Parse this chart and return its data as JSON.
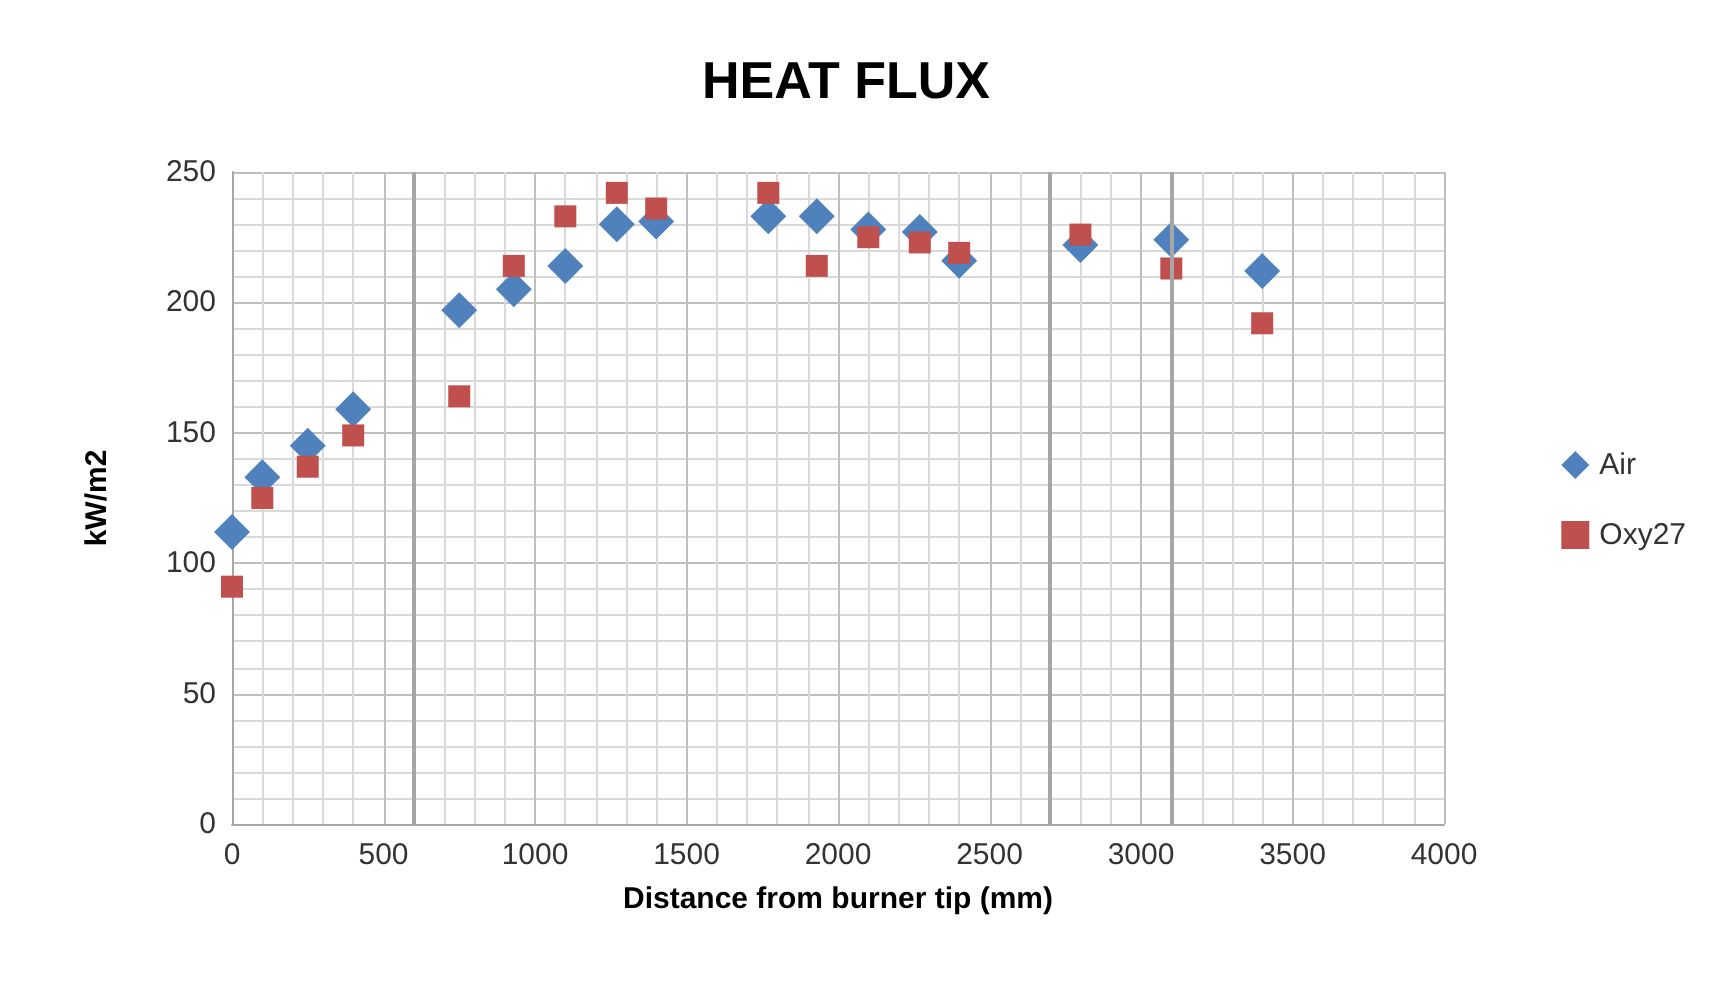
{
  "chart_data": {
    "type": "scatter",
    "title": "HEAT FLUX",
    "xlabel": "Distance from burner tip (mm)",
    "ylabel": "kW/m2",
    "xlim": [
      0,
      4000
    ],
    "xticks": [
      0,
      500,
      1000,
      1500,
      2000,
      2500,
      3000,
      3500,
      4000
    ],
    "ylim": [
      0,
      250
    ],
    "yticks": [
      0,
      50,
      100,
      150,
      200,
      250
    ],
    "grid": true,
    "legend": "right",
    "ref_lines": [
      {
        "axis": "x",
        "value": 600,
        "color": "#a6a6a6"
      },
      {
        "axis": "x",
        "value": 2700,
        "color": "#a6a6a6"
      },
      {
        "axis": "x",
        "value": 3100,
        "color": "#a6a6a6"
      }
    ],
    "series": [
      {
        "name": "Air",
        "color": "#4f81bd",
        "marker": "diamond",
        "x": [
          0,
          100,
          250,
          400,
          750,
          930,
          1100,
          1270,
          1400,
          1770,
          1930,
          2100,
          2270,
          2400,
          2800,
          3100,
          3400
        ],
        "values": [
          112,
          133,
          145,
          159,
          197,
          205,
          214,
          230,
          231,
          233,
          233,
          228,
          227,
          216,
          222,
          224,
          212
        ]
      },
      {
        "name": "Oxy27",
        "color": "#c0504d",
        "marker": "square",
        "x": [
          0,
          100,
          250,
          400,
          750,
          930,
          1100,
          1270,
          1400,
          1770,
          1930,
          2100,
          2270,
          2400,
          2800,
          3100,
          3400
        ],
        "values": [
          91,
          125,
          137,
          149,
          164,
          214,
          233,
          242,
          236,
          242,
          214,
          225,
          223,
          219,
          226,
          213,
          192
        ]
      }
    ]
  }
}
